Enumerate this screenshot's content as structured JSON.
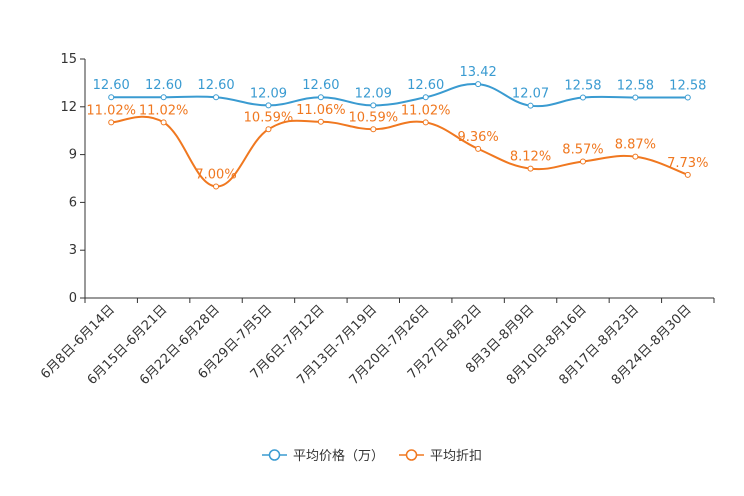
{
  "chart_data": {
    "type": "line",
    "title": "",
    "xlabel": "",
    "ylabel": "",
    "ylim": [
      0,
      15
    ],
    "yticks": [
      0,
      3,
      6,
      9,
      12,
      15
    ],
    "grid": false,
    "legend_position": "bottom",
    "categories": [
      "6月8日-6月14日",
      "6月15日-6月21日",
      "6月22日-6月28日",
      "6月29日-7月5日",
      "7月6日-7月12日",
      "7月13日-7月19日",
      "7月20日-7月26日",
      "7月27日-8月2日",
      "8月3日-8月9日",
      "8月10日-8月16日",
      "8月17日-8月23日",
      "8月24日-8月30日"
    ],
    "series": [
      {
        "name": "平均价格（万）",
        "color": "#3A9BD1",
        "values": [
          12.6,
          12.6,
          12.6,
          12.09,
          12.6,
          12.09,
          12.6,
          13.42,
          12.07,
          12.58,
          12.58,
          12.58
        ],
        "labels": [
          "12.60",
          "12.60",
          "12.60",
          "12.09",
          "12.60",
          "12.09",
          "12.60",
          "13.42",
          "12.07",
          "12.58",
          "12.58",
          "12.58"
        ]
      },
      {
        "name": "平均折扣",
        "color": "#F07820",
        "values": [
          11.02,
          11.02,
          7.0,
          10.59,
          11.06,
          10.59,
          11.02,
          9.36,
          8.12,
          8.57,
          8.87,
          7.73
        ],
        "labels": [
          "11.02%",
          "11.02%",
          "7.00%",
          "10.59%",
          "11.06%",
          "10.59%",
          "11.02%",
          "9.36%",
          "8.12%",
          "8.57%",
          "8.87%",
          "7.73%"
        ]
      }
    ]
  }
}
